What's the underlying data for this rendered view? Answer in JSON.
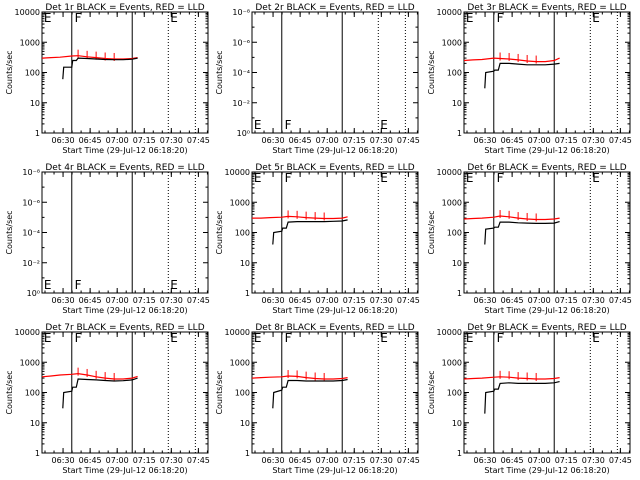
{
  "colors": {
    "events": "#000000",
    "lld": "#ff0000",
    "axes": "#000000",
    "background": "#ffffff"
  },
  "chart_data": [
    {
      "type": "line",
      "title": "Det 1r BLACK = Events, RED = LLD",
      "xlabel": "Start Time (29-Jul-12 06:18:20)",
      "ylabel": "Counts/sec",
      "x_ticks": [
        "06:30",
        "06:45",
        "07:00",
        "07:15",
        "07:30",
        "07:45"
      ],
      "xlim_minutes": [
        0,
        92
      ],
      "ylog": true,
      "ylim": [
        1,
        10000
      ],
      "y_ticks": [
        "1",
        "10",
        "100",
        "1000",
        "10000"
      ],
      "markers": {
        "solid": [
          16.5,
          50
        ],
        "dotted": [
          70,
          85
        ],
        "letters": [
          {
            "text": "E",
            "x": 0.5
          },
          {
            "text": "F",
            "x": 17.5
          },
          {
            "text": "E",
            "x": 70.5
          }
        ]
      },
      "series": [
        {
          "role": "lld",
          "x": [
            0,
            5,
            10,
            16.5,
            20,
            25,
            30,
            35,
            40,
            45,
            50,
            53
          ],
          "y": [
            300,
            310,
            320,
            350,
            360,
            330,
            310,
            290,
            280,
            280,
            290,
            310
          ]
        },
        {
          "role": "events",
          "x": [
            11.5,
            12,
            16.5,
            17,
            19,
            20,
            25,
            30,
            35,
            40,
            45,
            50,
            53
          ],
          "y": [
            60,
            150,
            150,
            250,
            250,
            300,
            290,
            280,
            270,
            265,
            265,
            275,
            300
          ]
        }
      ]
    },
    {
      "type": "line",
      "title": "Det 2r BLACK = Events, RED = LLD",
      "xlabel": "Start Time (29-Jul-12 06:18:20)",
      "ylabel": "Counts/sec",
      "x_ticks": [
        "06:30",
        "06:45",
        "07:00",
        "07:15",
        "07:30",
        "07:45"
      ],
      "xlim_minutes": [
        0,
        92
      ],
      "ylog": true,
      "ylim": [
        1,
        1e-08
      ],
      "y_ticks": [
        "10⁰",
        "10⁻²",
        "10⁻⁴",
        "10⁻⁶",
        "10⁻⁸"
      ],
      "markers": {
        "solid": [
          16.5,
          50
        ],
        "dotted": [
          70,
          85
        ],
        "letters": [
          {
            "text": "E",
            "x": 0.5
          },
          {
            "text": "F",
            "x": 17.5
          },
          {
            "text": "E",
            "x": 70.5
          }
        ]
      },
      "series": []
    },
    {
      "type": "line",
      "title": "Det 3r BLACK = Events, RED = LLD",
      "xlabel": "Start Time (29-Jul-12 06:18:20)",
      "ylabel": "Counts/sec",
      "x_ticks": [
        "06:30",
        "06:45",
        "07:00",
        "07:15",
        "07:30",
        "07:45"
      ],
      "xlim_minutes": [
        0,
        92
      ],
      "ylog": true,
      "ylim": [
        1,
        10000
      ],
      "y_ticks": [
        "1",
        "10",
        "100",
        "1000",
        "10000"
      ],
      "markers": {
        "solid": [
          16.5,
          50
        ],
        "dotted": [
          70,
          85
        ],
        "letters": [
          {
            "text": "E",
            "x": 0.5
          },
          {
            "text": "F",
            "x": 17.5
          },
          {
            "text": "E",
            "x": 70.5
          }
        ]
      },
      "series": [
        {
          "role": "lld",
          "x": [
            0,
            5,
            10,
            16.5,
            20,
            25,
            30,
            35,
            40,
            45,
            50,
            53
          ],
          "y": [
            250,
            260,
            270,
            300,
            290,
            280,
            260,
            240,
            230,
            230,
            250,
            300
          ]
        },
        {
          "role": "events",
          "x": [
            11.5,
            12,
            16.5,
            17,
            19,
            20,
            25,
            30,
            35,
            40,
            45,
            50,
            53
          ],
          "y": [
            30,
            100,
            110,
            120,
            120,
            200,
            200,
            190,
            180,
            180,
            180,
            190,
            200
          ]
        }
      ]
    },
    {
      "type": "line",
      "title": "Det 4r BLACK = Events, RED = LLD",
      "xlabel": "Start Time (29-Jul-12 06:18:20)",
      "ylabel": "Counts/sec",
      "x_ticks": [
        "06:30",
        "06:45",
        "07:00",
        "07:15",
        "07:30",
        "07:45"
      ],
      "xlim_minutes": [
        0,
        92
      ],
      "ylog": true,
      "ylim": [
        1,
        1e-08
      ],
      "y_ticks": [
        "10⁰",
        "10⁻²",
        "10⁻⁴",
        "10⁻⁶",
        "10⁻⁸"
      ],
      "markers": {
        "solid": [
          16.5,
          50
        ],
        "dotted": [
          70,
          85
        ],
        "letters": [
          {
            "text": "E",
            "x": 0.5
          },
          {
            "text": "F",
            "x": 17.5
          },
          {
            "text": "E",
            "x": 70.5
          }
        ]
      },
      "series": []
    },
    {
      "type": "line",
      "title": "Det 5r BLACK = Events, RED = LLD",
      "xlabel": "Start Time (29-Jul-12 06:18:20)",
      "ylabel": "Counts/sec",
      "x_ticks": [
        "06:30",
        "06:45",
        "07:00",
        "07:15",
        "07:30",
        "07:45"
      ],
      "xlim_minutes": [
        0,
        92
      ],
      "ylog": true,
      "ylim": [
        1,
        10000
      ],
      "y_ticks": [
        "1",
        "10",
        "100",
        "1000",
        "10000"
      ],
      "markers": {
        "solid": [
          16.5,
          50
        ],
        "dotted": [
          70,
          85
        ],
        "letters": [
          {
            "text": "E",
            "x": 0.5
          },
          {
            "text": "F",
            "x": 17.5
          },
          {
            "text": "E",
            "x": 70.5
          }
        ]
      },
      "series": [
        {
          "role": "lld",
          "x": [
            0,
            5,
            10,
            16.5,
            20,
            25,
            30,
            35,
            40,
            45,
            50,
            53
          ],
          "y": [
            300,
            300,
            310,
            320,
            340,
            330,
            310,
            300,
            290,
            290,
            300,
            330
          ]
        },
        {
          "role": "events",
          "x": [
            11.5,
            12,
            16.5,
            17,
            19,
            20,
            25,
            30,
            35,
            40,
            45,
            50,
            53
          ],
          "y": [
            40,
            100,
            110,
            140,
            140,
            220,
            230,
            230,
            230,
            230,
            235,
            240,
            260
          ]
        }
      ]
    },
    {
      "type": "line",
      "title": "Det 6r BLACK = Events, RED = LLD",
      "xlabel": "Start Time (29-Jul-12 06:18:20)",
      "ylabel": "Counts/sec",
      "x_ticks": [
        "06:30",
        "06:45",
        "07:00",
        "07:15",
        "07:30",
        "07:45"
      ],
      "xlim_minutes": [
        0,
        92
      ],
      "ylog": true,
      "ylim": [
        1,
        10000
      ],
      "y_ticks": [
        "1",
        "10",
        "100",
        "1000",
        "10000"
      ],
      "markers": {
        "solid": [
          16.5,
          50
        ],
        "dotted": [
          70,
          85
        ],
        "letters": [
          {
            "text": "E",
            "x": 0.5
          },
          {
            "text": "F",
            "x": 17.5
          },
          {
            "text": "E",
            "x": 70.5
          }
        ]
      },
      "series": [
        {
          "role": "lld",
          "x": [
            0,
            5,
            10,
            16.5,
            20,
            25,
            30,
            35,
            40,
            45,
            50,
            53
          ],
          "y": [
            280,
            290,
            300,
            320,
            350,
            330,
            300,
            280,
            270,
            270,
            280,
            300
          ]
        },
        {
          "role": "events",
          "x": [
            11.5,
            12,
            16.5,
            17,
            19,
            20,
            25,
            30,
            35,
            40,
            45,
            50,
            53
          ],
          "y": [
            40,
            130,
            140,
            150,
            150,
            220,
            220,
            210,
            205,
            200,
            200,
            205,
            230
          ]
        }
      ]
    },
    {
      "type": "line",
      "title": "Det 7r BLACK = Events, RED = LLD",
      "xlabel": "Start Time (29-Jul-12 06:18:20)",
      "ylabel": "Counts/sec",
      "x_ticks": [
        "06:30",
        "06:45",
        "07:00",
        "07:15",
        "07:30",
        "07:45"
      ],
      "xlim_minutes": [
        0,
        92
      ],
      "ylog": true,
      "ylim": [
        1,
        10000
      ],
      "y_ticks": [
        "1",
        "10",
        "100",
        "1000",
        "10000"
      ],
      "markers": {
        "solid": [
          16.5,
          50
        ],
        "dotted": [
          70,
          85
        ],
        "letters": [
          {
            "text": "E",
            "x": 0.5
          },
          {
            "text": "F",
            "x": 17.5
          },
          {
            "text": "E",
            "x": 70.5
          }
        ]
      },
      "series": [
        {
          "role": "lld",
          "x": [
            0,
            5,
            10,
            16.5,
            20,
            25,
            30,
            35,
            40,
            45,
            50,
            53
          ],
          "y": [
            330,
            350,
            380,
            400,
            420,
            380,
            330,
            300,
            280,
            280,
            300,
            340
          ]
        },
        {
          "role": "events",
          "x": [
            11.5,
            12,
            16.5,
            17,
            19,
            20,
            25,
            30,
            35,
            40,
            45,
            50,
            53
          ],
          "y": [
            30,
            100,
            110,
            150,
            150,
            280,
            270,
            260,
            250,
            240,
            245,
            260,
            300
          ]
        }
      ]
    },
    {
      "type": "line",
      "title": "Det 8r BLACK = Events, RED = LLD",
      "xlabel": "Start Time (29-Jul-12 06:18:20)",
      "ylabel": "Counts/sec",
      "x_ticks": [
        "06:30",
        "06:45",
        "07:00",
        "07:15",
        "07:30",
        "07:45"
      ],
      "xlim_minutes": [
        0,
        92
      ],
      "ylog": true,
      "ylim": [
        1,
        10000
      ],
      "y_ticks": [
        "1",
        "10",
        "100",
        "1000",
        "10000"
      ],
      "markers": {
        "solid": [
          16.5,
          50
        ],
        "dotted": [
          70,
          85
        ],
        "letters": [
          {
            "text": "E",
            "x": 0.5
          },
          {
            "text": "F",
            "x": 17.5
          },
          {
            "text": "E",
            "x": 70.5
          }
        ]
      },
      "series": [
        {
          "role": "lld",
          "x": [
            0,
            5,
            10,
            16.5,
            20,
            25,
            30,
            35,
            40,
            45,
            50,
            53
          ],
          "y": [
            300,
            310,
            320,
            330,
            350,
            340,
            310,
            290,
            280,
            280,
            290,
            310
          ]
        },
        {
          "role": "events",
          "x": [
            11.5,
            12,
            16.5,
            17,
            19,
            20,
            25,
            30,
            35,
            40,
            45,
            50,
            53
          ],
          "y": [
            30,
            100,
            120,
            150,
            150,
            250,
            250,
            240,
            240,
            240,
            240,
            250,
            270
          ]
        }
      ]
    },
    {
      "type": "line",
      "title": "Det 9r BLACK = Events, RED = LLD",
      "xlabel": "Start Time (29-Jul-12 06:18:20)",
      "ylabel": "Counts/sec",
      "x_ticks": [
        "06:30",
        "06:45",
        "07:00",
        "07:15",
        "07:30",
        "07:45"
      ],
      "xlim_minutes": [
        0,
        92
      ],
      "ylog": true,
      "ylim": [
        1,
        10000
      ],
      "y_ticks": [
        "1",
        "10",
        "100",
        "1000",
        "10000"
      ],
      "markers": {
        "solid": [
          16.5,
          50
        ],
        "dotted": [
          70,
          85
        ],
        "letters": [
          {
            "text": "E",
            "x": 0.5
          },
          {
            "text": "F",
            "x": 17.5
          },
          {
            "text": "E",
            "x": 70.5
          }
        ]
      },
      "series": [
        {
          "role": "lld",
          "x": [
            0,
            5,
            10,
            16.5,
            20,
            25,
            30,
            35,
            40,
            45,
            50,
            53
          ],
          "y": [
            280,
            290,
            300,
            320,
            330,
            320,
            300,
            290,
            280,
            280,
            290,
            310
          ]
        },
        {
          "role": "events",
          "x": [
            11.5,
            12,
            16.5,
            17,
            19,
            20,
            25,
            30,
            35,
            40,
            45,
            50,
            53
          ],
          "y": [
            20,
            100,
            110,
            130,
            130,
            200,
            210,
            200,
            200,
            200,
            200,
            210,
            230
          ]
        }
      ]
    }
  ]
}
